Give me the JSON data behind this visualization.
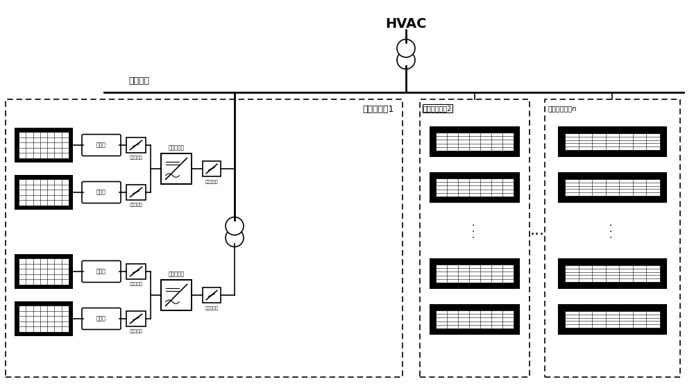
{
  "title": "HVAC",
  "ac_bus_label": "交流母线",
  "unit1_label": "光伏发单元1",
  "unit2_label": "光伏发电单元2",
  "unitn_label": "光伏发电单元n",
  "dc_breaker_label": "直流断路器",
  "ac_breaker_label": "交流断路器",
  "inverter_label": "逆变器装置",
  "junction_box_label": "汇流箱",
  "bg_color": "#ffffff",
  "line_color": "#000000"
}
